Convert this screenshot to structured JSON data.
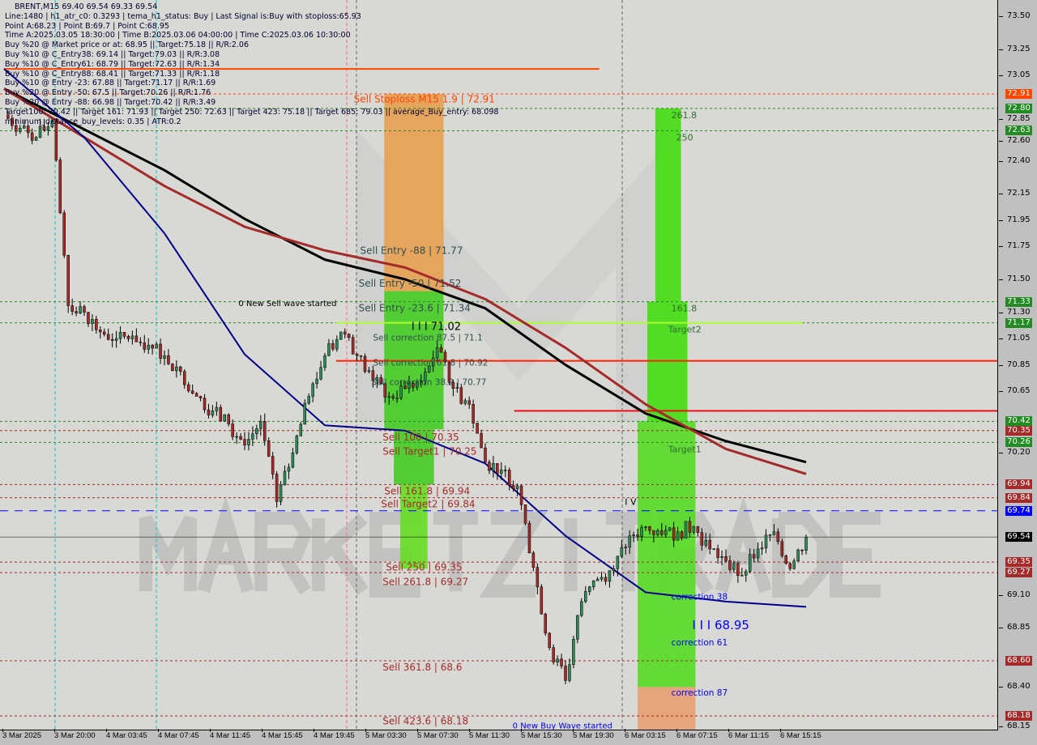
{
  "header": {
    "title": "BRENT,M15  69.40 69.54 69.33 69.54",
    "lines": [
      "Line:1480 | h1_atr_c0: 0.3293 | tema_h1_status: Buy | Last Signal is:Buy with stoploss:65.93",
      "Point A:68.23 | Point B:69.7 | Point C:68.95",
      "Time A:2025.03.05 18:30:00 | Time B:2025.03.06 04:00:00 | Time C:2025.03.06 10:30:00",
      "Buy %20 @ Market price or at: 68.95 || Target:75.18 || R/R:2.06",
      "Buy %10 @ C_Entry38: 69.14 || Target:79.03 || R/R:3.08",
      "Buy %10 @ C_Entry61: 68.79 || Target:72.63 || R/R:1.34",
      "Buy %10 @ C_Entry88: 68.41 || Target:71.33 || R/R:1.18",
      "Buy %10 @ Entry -23: 67.88 || Target:71.17 || R/R:1.69",
      "Buy %20 @ Entry -50: 67.5 || Target:70.26 || R/R:1.76",
      "Buy %20 @ Entry -88: 66.98 || Target:70.42 || R/R:3.49",
      "Target100: 70.42 || Target 161: 71.93 || Target 250: 72.63 || Target 423: 75.18 || Target 685: 79.03 || average_Buy_entry: 68.098",
      "minimum_distance_buy_levels: 0.35 | ATR:0.2"
    ]
  },
  "watermark": "MARKETZITRADE",
  "colors": {
    "bull": "#2e8b57",
    "bear": "#a52a2a",
    "ma_black": "#000000",
    "ma_red": "#a52a2a",
    "ma_navy": "#00008b",
    "sell": "#a52a2a",
    "buy": "#0000ff",
    "green_zone": "#44dd11",
    "orange_zone": "#e8a060"
  },
  "chart_data": {
    "type": "candlestick",
    "symbol": "BRENT",
    "timeframe": "M15",
    "ylim": [
      68.05,
      73.6
    ],
    "y_ticks": [
      "73.50",
      "73.25",
      "73.05",
      "72.85",
      "72.60",
      "72.40",
      "72.15",
      "71.95",
      "71.75",
      "71.50",
      "71.30",
      "71.05",
      "70.85",
      "70.65",
      "70.20",
      "69.10",
      "68.85",
      "68.40",
      "68.15"
    ],
    "x_ticks": [
      "3 Mar 2025",
      "3 Mar 20:00",
      "4 Mar 03:45",
      "4 Mar 07:45",
      "4 Mar 11:45",
      "4 Mar 15:45",
      "4 Mar 19:45",
      "5 Mar 03:30",
      "5 Mar 07:30",
      "5 Mar 11:30",
      "5 Mar 15:30",
      "5 Mar 19:30",
      "6 Mar 03:15",
      "6 Mar 07:15",
      "6 Mar 11:15",
      "6 Mar 15:15"
    ],
    "close": [
      72.75,
      72.65,
      72.58,
      72.7,
      71.3,
      71.25,
      71.1,
      71.05,
      71.07,
      71.0,
      70.92,
      70.8,
      70.61,
      70.5,
      70.4,
      70.24,
      70.42,
      69.81,
      70.18,
      70.61,
      70.92,
      71.1,
      70.92,
      70.73,
      70.61,
      70.67,
      70.73,
      70.98,
      70.67,
      70.55,
      70.11,
      70.05,
      69.93,
      69.31,
      68.7,
      68.45,
      69.05,
      69.22,
      69.3,
      69.55,
      69.62,
      69.56,
      69.58,
      69.62,
      69.45,
      69.36,
      69.25,
      69.45,
      69.58,
      69.3,
      69.54
    ],
    "moving_averages": [
      {
        "color": "#000000",
        "values": [
          72.95,
          72.64,
          72.33,
          71.96,
          71.65,
          71.5,
          71.28,
          70.85,
          70.48,
          70.27,
          70.11
        ]
      },
      {
        "color": "#a52a2a",
        "values": [
          72.95,
          72.58,
          72.21,
          71.9,
          71.72,
          71.59,
          71.35,
          70.98,
          70.55,
          70.21,
          70.02
        ]
      },
      {
        "color": "#00008b",
        "values": [
          73.1,
          72.58,
          71.85,
          70.93,
          70.39,
          70.35,
          70.1,
          69.55,
          69.12,
          69.05,
          69.01
        ]
      }
    ],
    "zones": [
      {
        "from": 23.7,
        "to": 27.4,
        "high": 72.91,
        "low": 71.41,
        "color": "#e8a050"
      },
      {
        "from": 23.7,
        "to": 27.4,
        "high": 71.41,
        "low": 70.36,
        "color": "#44cc22"
      },
      {
        "from": 24.3,
        "to": 26.8,
        "high": 70.36,
        "low": 69.94,
        "color": "#44cc22"
      },
      {
        "from": 24.7,
        "to": 26.4,
        "high": 69.94,
        "low": 69.3,
        "color": "#66dd22"
      },
      {
        "from": 40.6,
        "to": 42.2,
        "high": 72.8,
        "low": 71.33,
        "color": "#44dd11"
      },
      {
        "from": 40.1,
        "to": 42.6,
        "high": 71.33,
        "low": 70.42,
        "color": "#44dd11"
      },
      {
        "from": 39.5,
        "to": 43.1,
        "high": 70.42,
        "low": 68.4,
        "color": "#55dd22"
      },
      {
        "from": 39.5,
        "to": 43.1,
        "high": 68.4,
        "low": 68.05,
        "color": "#e8a070"
      }
    ],
    "levels": [
      {
        "price": 72.91,
        "label": "72.91",
        "color": "#ff4500",
        "style": "dash"
      },
      {
        "price": 72.8,
        "label": "72.80",
        "color": "#228b22",
        "style": "dash"
      },
      {
        "price": 72.63,
        "label": "72.63",
        "color": "#228b22",
        "style": "dash"
      },
      {
        "price": 71.33,
        "label": "71.33",
        "color": "#228b22",
        "style": "dash"
      },
      {
        "price": 71.17,
        "label": "71.17",
        "color": "#228b22",
        "style": "dash"
      },
      {
        "price": 70.42,
        "label": "70.42",
        "color": "#228b22",
        "style": "dash"
      },
      {
        "price": 70.35,
        "label": "70.35",
        "color": "#a52a2a",
        "style": "dash"
      },
      {
        "price": 70.26,
        "label": "70.26",
        "color": "#228b22",
        "style": "dash"
      },
      {
        "price": 69.94,
        "label": "69.94",
        "color": "#a52a2a",
        "style": "dash"
      },
      {
        "price": 69.84,
        "label": "69.84",
        "color": "#a52a2a",
        "style": "dash"
      },
      {
        "price": 69.74,
        "label": "69.74",
        "color": "#0000ff",
        "style": "longdash"
      },
      {
        "price": 69.54,
        "label": "69.54",
        "color": "#000000",
        "style": "solid"
      },
      {
        "price": 69.35,
        "label": "69.35",
        "color": "#a52a2a",
        "style": "dash"
      },
      {
        "price": 69.27,
        "label": "69.27",
        "color": "#a52a2a",
        "style": "dash"
      },
      {
        "price": 68.6,
        "label": "68.60",
        "color": "#a52a2a",
        "style": "dash"
      },
      {
        "price": 68.18,
        "label": "68.18",
        "color": "#a52a2a",
        "style": "dash"
      }
    ],
    "segments": [
      {
        "from": 0,
        "to": 37.1,
        "price": 73.1,
        "color": "#ff4500"
      },
      {
        "from": 20.7,
        "to": 62,
        "price": 70.88,
        "color": "#ff2200"
      },
      {
        "from": 31.8,
        "to": 62,
        "price": 70.5,
        "color": "#ee1111"
      },
      {
        "from": 20.7,
        "to": 49.8,
        "price": 71.17,
        "color": "#adff2f"
      }
    ],
    "annotations": [
      {
        "text": "Sell Stoploss M15 1.9 | 72.91",
        "i": 21.8,
        "price": 72.87,
        "color": "#ff4500",
        "size": 12
      },
      {
        "text": "Sell Entry -88 | 71.77",
        "i": 22.2,
        "price": 71.72,
        "color": "#2f4f4f",
        "size": 12
      },
      {
        "text": "Sell Entry -50 | 71.52",
        "i": 22.1,
        "price": 71.47,
        "color": "#2f4f4f",
        "size": 12
      },
      {
        "text": "Sell Entry -23.6 | 71.34",
        "i": 22.1,
        "price": 71.28,
        "color": "#2f4f4f",
        "size": 12
      },
      {
        "text": "0 New Sell wave started",
        "i": 18.4,
        "price": 71.32,
        "color": "#000000",
        "size": 10
      },
      {
        "text": "I I I 71.02",
        "i": 25.4,
        "price": 71.14,
        "color": "#000000",
        "size": 13
      },
      {
        "text": "Sell correction 87.5 | 71.1",
        "i": 23.0,
        "price": 71.06,
        "color": "#2f4f4f",
        "size": 10.5
      },
      {
        "text": "Sell correction 61.8 | 70.92",
        "i": 23.0,
        "price": 70.87,
        "color": "#2f4f4f",
        "size": 10.5
      },
      {
        "text": "Sell correction 38.2 | 70.77",
        "i": 22.9,
        "price": 70.72,
        "color": "#2f4f4f",
        "size": 10.5
      },
      {
        "text": "Sell 100 | 70.35",
        "i": 23.6,
        "price": 70.3,
        "color": "#a52a2a",
        "size": 12
      },
      {
        "text": "Sell Target1 | 70.25",
        "i": 23.6,
        "price": 70.19,
        "color": "#a52a2a",
        "size": 12
      },
      {
        "text": "Sell 161.8 | 69.94",
        "i": 23.7,
        "price": 69.89,
        "color": "#a52a2a",
        "size": 12
      },
      {
        "text": "Sell Target2 | 69.84",
        "i": 23.5,
        "price": 69.79,
        "color": "#a52a2a",
        "size": 12
      },
      {
        "text": "Sell 250 | 69.35",
        "i": 23.8,
        "price": 69.3,
        "color": "#a52a2a",
        "size": 12
      },
      {
        "text": "Sell 261.8 | 69.27",
        "i": 23.6,
        "price": 69.22,
        "color": "#a52a2a",
        "size": 12
      },
      {
        "text": "Sell 361.8 | 68.6",
        "i": 23.6,
        "price": 68.55,
        "color": "#a52a2a",
        "size": 12
      },
      {
        "text": "Sell 423.6 | 68.18",
        "i": 23.6,
        "price": 68.14,
        "color": "#a52a2a",
        "size": 12
      },
      {
        "text": "0 New Buy Wave started",
        "i": 31.7,
        "price": 68.11,
        "color": "#0000ff",
        "size": 10
      },
      {
        "text": "261.8",
        "i": 41.6,
        "price": 72.75,
        "color": "#2f6f2f",
        "size": 11
      },
      {
        "text": "250",
        "i": 41.9,
        "price": 72.58,
        "color": "#2f6f2f",
        "size": 11
      },
      {
        "text": "161.8",
        "i": 41.6,
        "price": 71.28,
        "color": "#2f6f2f",
        "size": 11
      },
      {
        "text": "Target2",
        "i": 41.4,
        "price": 71.12,
        "color": "#2f6f2f",
        "size": 11
      },
      {
        "text": "Target1",
        "i": 41.4,
        "price": 70.21,
        "color": "#2f6f2f",
        "size": 11
      },
      {
        "text": "correction 38",
        "i": 41.6,
        "price": 69.09,
        "color": "#0000ff",
        "size": 10.5
      },
      {
        "text": "correction 61",
        "i": 41.6,
        "price": 68.74,
        "color": "#0000ff",
        "size": 10.5
      },
      {
        "text": "correction 87",
        "i": 41.6,
        "price": 68.36,
        "color": "#0000ff",
        "size": 10.5
      },
      {
        "text": "I I I 68.95",
        "i": 42.9,
        "price": 68.81,
        "color": "#0000ff",
        "size": 15
      },
      {
        "text": "I V",
        "i": 38.7,
        "price": 69.81,
        "color": "#000000",
        "size": 11
      }
    ]
  }
}
